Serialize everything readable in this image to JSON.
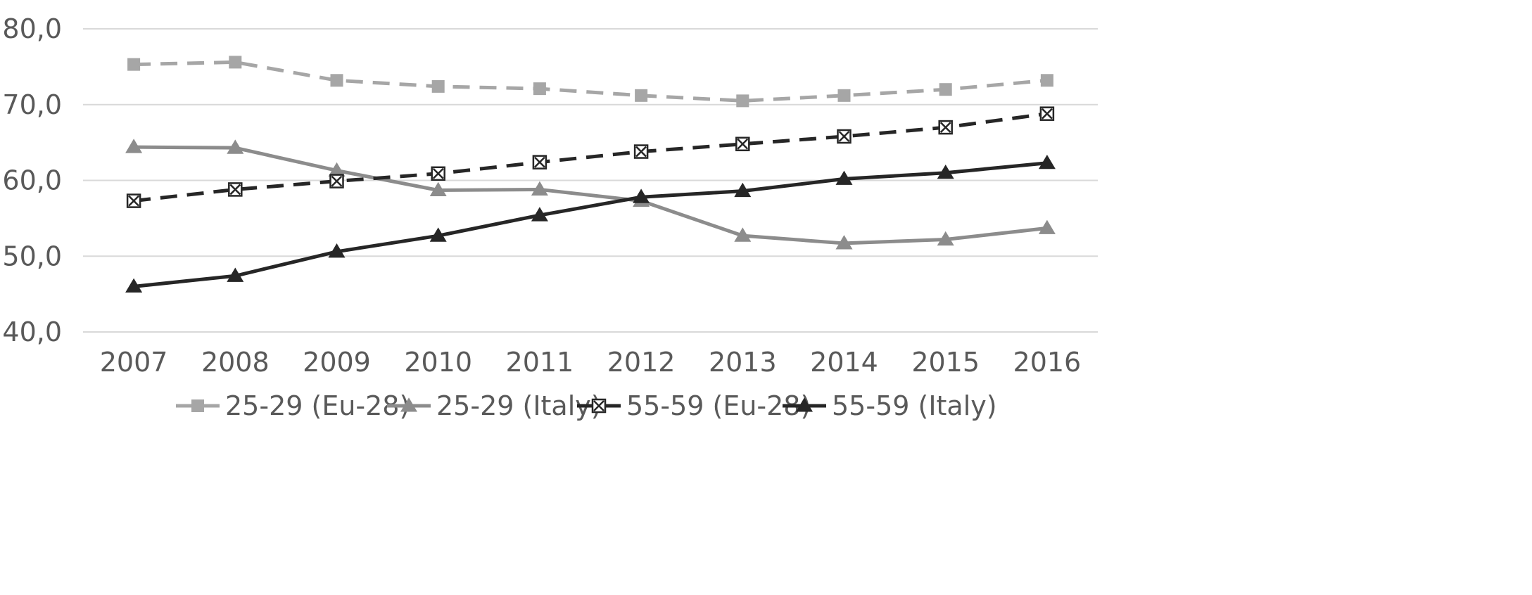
{
  "chart_data": {
    "type": "line",
    "title": "",
    "xlabel": "",
    "ylabel": "",
    "categories": [
      "2007",
      "2008",
      "2009",
      "2010",
      "2011",
      "2012",
      "2013",
      "2014",
      "2015",
      "2016"
    ],
    "ylim": [
      40,
      80
    ],
    "y_ticks": [
      40,
      50,
      60,
      70,
      80
    ],
    "y_tick_labels": [
      "40,0",
      "50,0",
      "60,0",
      "70,0",
      "80,0"
    ],
    "grid": true,
    "legend_position": "bottom",
    "series": [
      {
        "name": "25-29 (Eu-28)",
        "values": [
          75.3,
          75.6,
          73.2,
          72.4,
          72.1,
          71.2,
          70.5,
          71.2,
          72.0,
          73.2
        ],
        "color": "#a6a6a6",
        "dash": "dashed",
        "marker": "square"
      },
      {
        "name": "25-29 (Italy)",
        "values": [
          64.4,
          64.3,
          61.3,
          58.7,
          58.8,
          57.3,
          52.7,
          51.7,
          52.2,
          53.7
        ],
        "color": "#8c8c8c",
        "dash": "solid",
        "marker": "triangle"
      },
      {
        "name": "55-59 (Eu-28)",
        "values": [
          57.3,
          58.8,
          59.9,
          60.9,
          62.4,
          63.8,
          64.8,
          65.8,
          67.0,
          68.8
        ],
        "color": "#262626",
        "dash": "dashed",
        "marker": "square-x"
      },
      {
        "name": "55-59 (Italy)",
        "values": [
          46.0,
          47.4,
          50.6,
          52.7,
          55.4,
          57.8,
          58.6,
          60.2,
          61.0,
          62.3
        ],
        "color": "#262626",
        "dash": "solid",
        "marker": "triangle"
      }
    ]
  }
}
